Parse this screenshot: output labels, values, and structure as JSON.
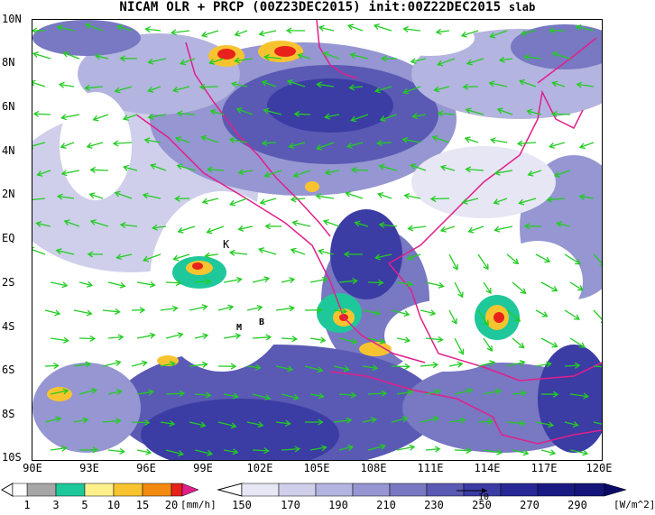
{
  "title": "NICAM OLR + PRCP (00Z23DEC2015) init:00Z22DEC2015",
  "title_suffix": "slab",
  "map": {
    "lat_labels": [
      "10N",
      "8N",
      "6N",
      "4N",
      "2N",
      "EQ",
      "2S",
      "4S",
      "6S",
      "8S",
      "10S"
    ],
    "lon_labels": [
      "90E",
      "93E",
      "96E",
      "99E",
      "102E",
      "105E",
      "108E",
      "111E",
      "114E",
      "117E",
      "120E"
    ],
    "place_labels": [
      "K",
      "M",
      "B"
    ],
    "coast_color": "#e0208a",
    "vector_color": "#22cc22"
  },
  "precip_legend": {
    "ticks": [
      "1",
      "3",
      "5",
      "10",
      "15",
      "20"
    ],
    "unit": "[mm/h]",
    "colors": [
      "#a6a6a6",
      "#1ec89a",
      "#fff08c",
      "#f7c430",
      "#f28a10",
      "#e8221a",
      "#e0208a"
    ]
  },
  "olr_legend": {
    "ticks": [
      "150",
      "170",
      "190",
      "210",
      "230",
      "250",
      "270",
      "290"
    ],
    "unit": "[W/m^2]",
    "colors": [
      "#ffffff",
      "#e6e6f5",
      "#cfcfeb",
      "#b4b4e0",
      "#9696d2",
      "#7878c3",
      "#5a5ab4",
      "#3c3ca5",
      "#282896",
      "#14147a"
    ]
  },
  "vector_ref": "10"
}
